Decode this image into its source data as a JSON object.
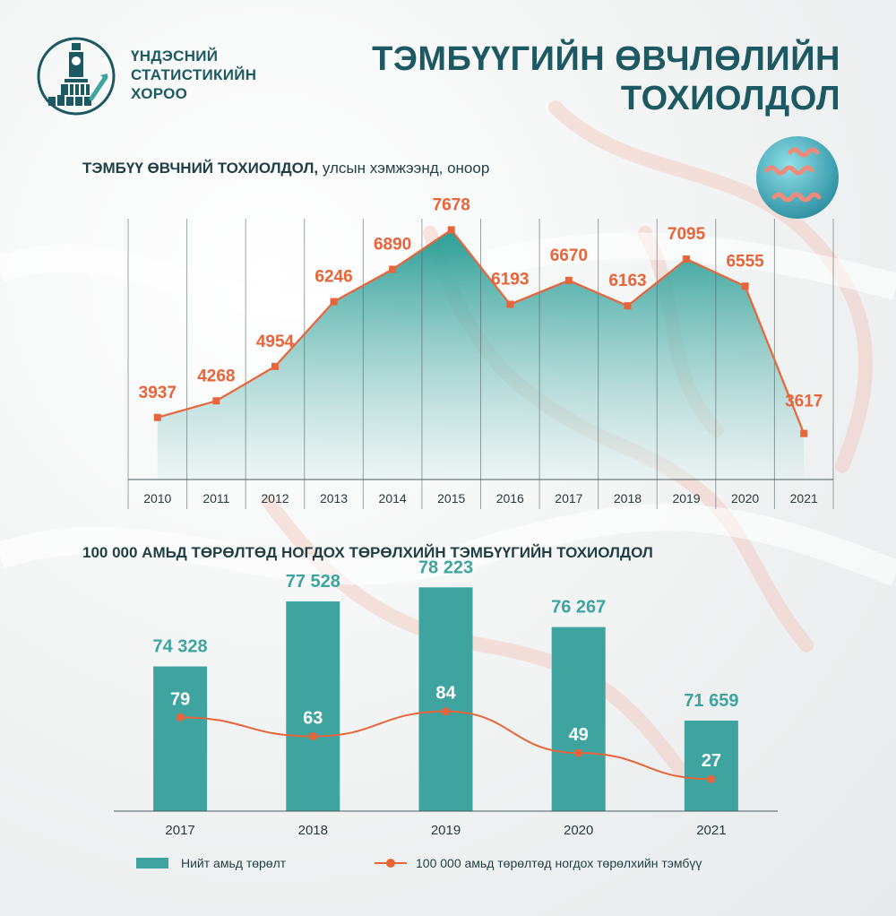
{
  "header": {
    "org_line1": "ҮНДЭСНИЙ",
    "org_line2": "СТАТИСТИКИЙН",
    "org_line3": "ХОРОО",
    "title_line1": "ТЭМБҮҮГИЙН ӨВЧЛӨЛИЙН",
    "title_line2": "ТОХИОЛДОЛ"
  },
  "colors": {
    "brand_dark": "#1d5963",
    "teal": "#3fa39f",
    "orange": "#e8643a"
  },
  "icons": [
    "statistics-logo-icon",
    "bacteria-icon"
  ],
  "chart_data": [
    {
      "type": "area",
      "title": "ТЭМБҮҮ ӨВЧНИЙ ТОХИОЛДОЛ,",
      "subtitle": "улсын хэмжээнд, оноор",
      "categories": [
        "2010",
        "2011",
        "2012",
        "2013",
        "2014",
        "2015",
        "2016",
        "2017",
        "2018",
        "2019",
        "2020",
        "2021"
      ],
      "values": [
        3937,
        4268,
        4954,
        6246,
        6890,
        7678,
        6193,
        6670,
        6163,
        7095,
        6555,
        3617
      ],
      "value_labels": [
        "3937",
        "4268",
        "4954",
        "6246",
        "6890",
        "7678",
        "6193",
        "6670",
        "6163",
        "7095",
        "6555",
        "3617"
      ],
      "ylim": [
        2700,
        7900
      ],
      "grid": "vertical",
      "legend": "none"
    },
    {
      "type": "bar",
      "title": "100 000 АМЬД ТӨРӨЛТӨД НОГДОХ ТӨРӨЛХИЙН ТЭМБҮҮГИЙН ТОХИОЛДОЛ",
      "categories": [
        "2017",
        "2018",
        "2019",
        "2020",
        "2021"
      ],
      "series": [
        {
          "name": "Нийт амьд төрөлт",
          "type": "bar",
          "values": [
            74328,
            77528,
            78223,
            76267,
            71659
          ],
          "value_labels": [
            "74 328",
            "77 528",
            "78 223",
            "76 267",
            "71 659"
          ]
        },
        {
          "name": "100 000 амьд төрөлтөд ногдох төрөлхийн тэмбүү",
          "type": "line",
          "values": [
            79,
            63,
            84,
            49,
            27
          ],
          "value_labels": [
            "79",
            "63",
            "84",
            "49",
            "27"
          ]
        }
      ],
      "ylim": [
        67200,
        78900
      ],
      "line_ylim": [
        0,
        200
      ],
      "legend": "bottom"
    }
  ]
}
